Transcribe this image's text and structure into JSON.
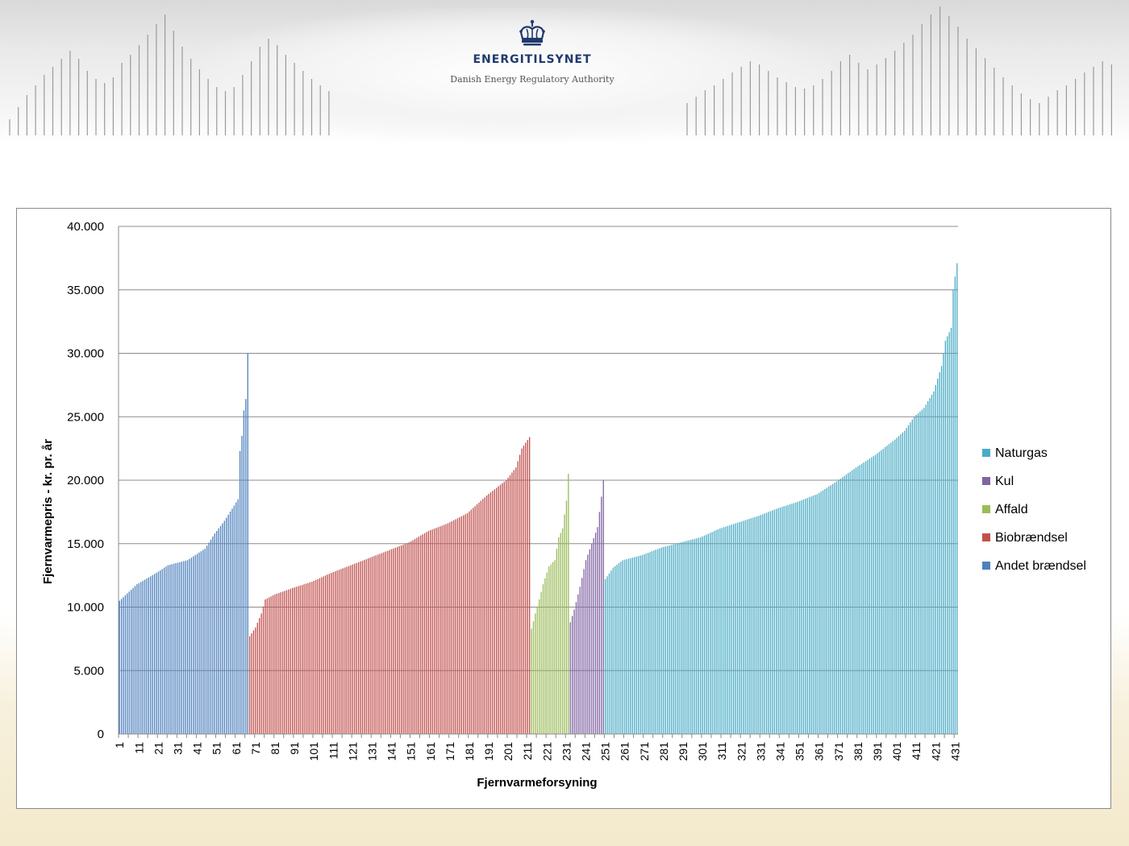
{
  "header": {
    "brand_name": "ENERGITILSYNET",
    "brand_sub": "Danish Energy Regulatory Authority",
    "logo_icon": "royal-crown-icon"
  },
  "chart_data": {
    "type": "bar",
    "xlabel": "Fjernvarmeforsyning",
    "ylabel": "Fjernvarmepris - kr. pr. år",
    "ylim": [
      0,
      40000
    ],
    "y_ticks": [
      "0",
      "5.000",
      "10.000",
      "15.000",
      "20.000",
      "25.000",
      "30.000",
      "35.000",
      "40.000"
    ],
    "x_tick_labels": [
      "1",
      "11",
      "21",
      "31",
      "41",
      "51",
      "61",
      "71",
      "81",
      "91",
      "101",
      "111",
      "121",
      "131",
      "141",
      "151",
      "161",
      "171",
      "181",
      "191",
      "201",
      "211",
      "221",
      "231",
      "241",
      "251",
      "261",
      "271",
      "281",
      "291",
      "301",
      "311",
      "321",
      "331",
      "341",
      "351",
      "361",
      "371",
      "381",
      "391",
      "401",
      "411",
      "421",
      "431"
    ],
    "grid": "horizontal",
    "legend_position": "right",
    "x_count": 432,
    "series": [
      {
        "name": "Andet brændsel",
        "color": "#4f81bd",
        "x_start": 1,
        "x_end": 67,
        "anchors": [
          [
            1,
            10500
          ],
          [
            10,
            11800
          ],
          [
            20,
            12700
          ],
          [
            26,
            13300
          ],
          [
            36,
            13700
          ],
          [
            41,
            14200
          ],
          [
            45,
            14600
          ],
          [
            50,
            15800
          ],
          [
            55,
            16800
          ],
          [
            60,
            18000
          ],
          [
            62,
            18500
          ],
          [
            63,
            22300
          ],
          [
            64,
            23500
          ],
          [
            65,
            25500
          ],
          [
            66,
            26400
          ],
          [
            67,
            30000
          ]
        ]
      },
      {
        "name": "Biobrændsel",
        "color": "#c0504d",
        "x_start": 68,
        "x_end": 212,
        "anchors": [
          [
            68,
            7700
          ],
          [
            71,
            8400
          ],
          [
            74,
            9500
          ],
          [
            76,
            10600
          ],
          [
            81,
            11000
          ],
          [
            90,
            11500
          ],
          [
            100,
            12000
          ],
          [
            110,
            12700
          ],
          [
            120,
            13300
          ],
          [
            130,
            13900
          ],
          [
            140,
            14500
          ],
          [
            150,
            15100
          ],
          [
            160,
            16000
          ],
          [
            170,
            16600
          ],
          [
            180,
            17400
          ],
          [
            190,
            18800
          ],
          [
            200,
            20000
          ],
          [
            205,
            21000
          ],
          [
            208,
            22500
          ],
          [
            212,
            23400
          ]
        ]
      },
      {
        "name": "Affald",
        "color": "#9bbb59",
        "x_start": 213,
        "x_end": 232,
        "anchors": [
          [
            213,
            8300
          ],
          [
            215,
            9500
          ],
          [
            217,
            10600
          ],
          [
            219,
            11800
          ],
          [
            222,
            13200
          ],
          [
            225,
            13700
          ],
          [
            227,
            15500
          ],
          [
            229,
            16200
          ],
          [
            231,
            18400
          ],
          [
            232,
            20500
          ]
        ]
      },
      {
        "name": "Kul",
        "color": "#8064a2",
        "x_start": 233,
        "x_end": 250,
        "anchors": [
          [
            233,
            8800
          ],
          [
            235,
            9800
          ],
          [
            238,
            11600
          ],
          [
            241,
            13700
          ],
          [
            244,
            15000
          ],
          [
            247,
            16300
          ],
          [
            249,
            18700
          ],
          [
            250,
            20000
          ]
        ]
      },
      {
        "name": "Naturgas",
        "color": "#4bacc6",
        "x_start": 251,
        "x_end": 432,
        "anchors": [
          [
            251,
            12200
          ],
          [
            255,
            13100
          ],
          [
            260,
            13700
          ],
          [
            270,
            14100
          ],
          [
            280,
            14700
          ],
          [
            290,
            15100
          ],
          [
            300,
            15500
          ],
          [
            310,
            16200
          ],
          [
            320,
            16700
          ],
          [
            330,
            17200
          ],
          [
            340,
            17800
          ],
          [
            350,
            18300
          ],
          [
            360,
            18900
          ],
          [
            370,
            19900
          ],
          [
            380,
            21000
          ],
          [
            390,
            22000
          ],
          [
            400,
            23200
          ],
          [
            405,
            23900
          ],
          [
            410,
            25000
          ],
          [
            415,
            25700
          ],
          [
            420,
            27000
          ],
          [
            424,
            29000
          ],
          [
            426,
            31000
          ],
          [
            429,
            32000
          ],
          [
            430,
            35000
          ],
          [
            432,
            37100
          ]
        ]
      }
    ]
  }
}
